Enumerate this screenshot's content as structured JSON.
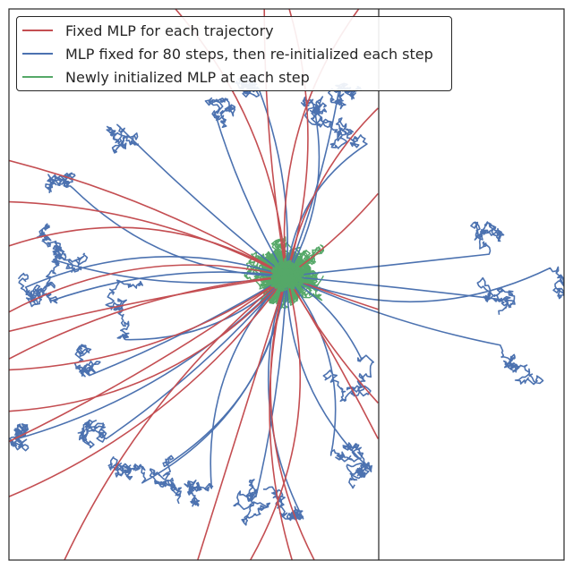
{
  "chart_data": {
    "type": "line",
    "title": "",
    "xlabel": "",
    "ylabel": "",
    "xlim": [
      -1,
      1
    ],
    "ylim": [
      -1,
      1
    ],
    "grid": false,
    "legend_position": "top-left",
    "origin": [
      0.0,
      0.03
    ],
    "series": [
      {
        "name": "Fixed MLP for each trajectory",
        "color": "#c44e52",
        "endpoints": [
          [
            -1,
            0.45
          ],
          [
            -1,
            0.3
          ],
          [
            -1,
            0.14
          ],
          [
            -1,
            -0.1
          ],
          [
            -1,
            -0.17
          ],
          [
            -1,
            -0.27
          ],
          [
            -1,
            -0.31
          ],
          [
            -1,
            -0.46
          ],
          [
            -1,
            -0.57
          ],
          [
            -1,
            -0.77
          ],
          [
            -0.8,
            -1
          ],
          [
            -0.32,
            -1
          ],
          [
            -0.13,
            -1
          ],
          [
            0.02,
            -1
          ],
          [
            0.1,
            -1
          ],
          [
            -0.4,
            1
          ],
          [
            -0.08,
            1
          ],
          [
            0.01,
            1
          ],
          [
            0.26,
            1
          ],
          [
            0.33,
            0.64
          ],
          [
            0.33,
            0.33
          ],
          [
            0.33,
            -0.09
          ],
          [
            0.33,
            -0.43
          ],
          [
            0.33,
            -0.56
          ]
        ]
      },
      {
        "name": "MLP fixed for 80 steps, then re-initialized each step",
        "color": "#4c72b0",
        "endpoints": [
          [
            -0.61,
            0.58
          ],
          [
            -0.77,
            0.35
          ],
          [
            -0.84,
            0.09
          ],
          [
            -0.85,
            -0.06
          ],
          [
            -0.58,
            -0.2
          ],
          [
            -0.71,
            -0.33
          ],
          [
            -0.65,
            -0.56
          ],
          [
            -0.52,
            -0.72
          ],
          [
            -0.44,
            -0.66
          ],
          [
            -0.27,
            -0.74
          ],
          [
            -0.11,
            -0.77
          ],
          [
            0.06,
            -0.85
          ],
          [
            0.16,
            -0.62
          ],
          [
            0.29,
            -0.66
          ],
          [
            0.27,
            -0.27
          ],
          [
            0.29,
            0.51
          ],
          [
            0.19,
            0.71
          ],
          [
            0.1,
            0.64
          ],
          [
            -0.26,
            0.63
          ],
          [
            -0.1,
            0.71
          ],
          [
            -0.97,
            -0.56
          ],
          [
            -0.94,
            -0.01
          ],
          [
            0.73,
            0.11
          ],
          [
            0.82,
            -0.06
          ],
          [
            0.77,
            -0.22
          ],
          [
            0.95,
            0.06
          ]
        ]
      },
      {
        "name": "Newly initialized MLP at each step",
        "color": "#55a868",
        "endpoints": []
      }
    ]
  }
}
